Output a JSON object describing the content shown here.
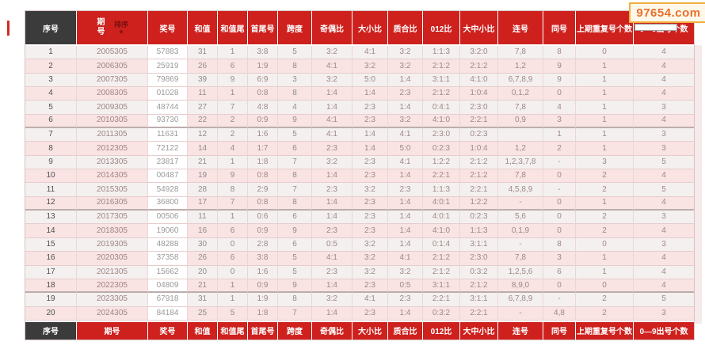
{
  "watermark": {
    "text": "97654.com"
  },
  "table": {
    "sort_label": "排序",
    "columns": [
      {
        "key": "serial",
        "label": "序号"
      },
      {
        "key": "period",
        "label": "期号"
      },
      {
        "key": "prize-number",
        "label": "奖号"
      },
      {
        "key": "sum",
        "label": "和值"
      },
      {
        "key": "sum-tail",
        "label": "和值尾"
      },
      {
        "key": "first-last",
        "label": "首尾号"
      },
      {
        "key": "span",
        "label": "跨度"
      },
      {
        "key": "odd-even-ratio",
        "label": "奇偶比"
      },
      {
        "key": "big-small-ratio",
        "label": "大小比"
      },
      {
        "key": "prime-composite-ratio",
        "label": "质合比"
      },
      {
        "key": "zero-one-two-ratio",
        "label": "012比"
      },
      {
        "key": "big-mid-small-ratio",
        "label": "大中小比"
      },
      {
        "key": "consecutive-numbers",
        "label": "连号"
      },
      {
        "key": "same-number",
        "label": "同号"
      },
      {
        "key": "prev-repeat-count",
        "label": "上期重复号个数"
      },
      {
        "key": "digit-count",
        "label": "0—9出号个数"
      }
    ],
    "rows": [
      [
        "1",
        "2005305",
        "57883",
        "31",
        "1",
        "3:8",
        "5",
        "3:2",
        "4:1",
        "3:2",
        "1:1:3",
        "3:2:0",
        "7,8",
        "8",
        "0",
        "4"
      ],
      [
        "2",
        "2006305",
        "25919",
        "26",
        "6",
        "1:9",
        "8",
        "4:1",
        "3:2",
        "3:2",
        "2:1:2",
        "2:1:2",
        "1,2",
        "9",
        "1",
        "4"
      ],
      [
        "3",
        "2007305",
        "79869",
        "39",
        "9",
        "6:9",
        "3",
        "3:2",
        "5:0",
        "1:4",
        "3:1:1",
        "4:1:0",
        "6,7,8,9",
        "9",
        "1",
        "4"
      ],
      [
        "4",
        "2008305",
        "01028",
        "11",
        "1",
        "0:8",
        "8",
        "1:4",
        "1:4",
        "2:3",
        "2:1:2",
        "1:0:4",
        "0,1,2",
        "0",
        "1",
        "4"
      ],
      [
        "5",
        "2009305",
        "48744",
        "27",
        "7",
        "4:8",
        "4",
        "1:4",
        "2:3",
        "1:4",
        "0:4:1",
        "2:3:0",
        "7,8",
        "4",
        "1",
        "3"
      ],
      [
        "6",
        "2010305",
        "93730",
        "22",
        "2",
        "0:9",
        "9",
        "4:1",
        "2:3",
        "3:2",
        "4:1:0",
        "2:2:1",
        "0,9",
        "3",
        "1",
        "4"
      ],
      [
        "7",
        "2011305",
        "11631",
        "12",
        "2",
        "1:6",
        "5",
        "4:1",
        "1:4",
        "4:1",
        "2:3:0",
        "0:2:3",
        "",
        "1",
        "1",
        "3"
      ],
      [
        "8",
        "2012305",
        "72122",
        "14",
        "4",
        "1:7",
        "6",
        "2:3",
        "1:4",
        "5:0",
        "0:2:3",
        "1:0:4",
        "1,2",
        "2",
        "1",
        "3"
      ],
      [
        "9",
        "2013305",
        "23817",
        "21",
        "1",
        "1:8",
        "7",
        "3:2",
        "2:3",
        "4:1",
        "1:2:2",
        "2:1:2",
        "1,2,3,7,8",
        "-",
        "3",
        "5"
      ],
      [
        "10",
        "2014305",
        "00487",
        "19",
        "9",
        "0:8",
        "8",
        "1:4",
        "2:3",
        "1:4",
        "2:2:1",
        "2:1:2",
        "7,8",
        "0",
        "2",
        "4"
      ],
      [
        "11",
        "2015305",
        "54928",
        "28",
        "8",
        "2:9",
        "7",
        "2:3",
        "3:2",
        "2:3",
        "1:1:3",
        "2:2:1",
        "4,5,8,9",
        "-",
        "2",
        "5"
      ],
      [
        "12",
        "2016305",
        "36800",
        "17",
        "7",
        "0:8",
        "8",
        "1:4",
        "2:3",
        "1:4",
        "4:0:1",
        "1:2:2",
        "-",
        "0",
        "1",
        "4"
      ],
      [
        "13",
        "2017305",
        "00506",
        "11",
        "1",
        "0:6",
        "6",
        "1:4",
        "2:3",
        "1:4",
        "4:0:1",
        "0:2:3",
        "5,6",
        "0",
        "2",
        "3"
      ],
      [
        "14",
        "2018305",
        "19060",
        "16",
        "6",
        "0:9",
        "9",
        "2:3",
        "2:3",
        "1:4",
        "4:1:0",
        "1:1:3",
        "0,1,9",
        "0",
        "2",
        "4"
      ],
      [
        "15",
        "2019305",
        "48288",
        "30",
        "0",
        "2:8",
        "6",
        "0:5",
        "3:2",
        "1:4",
        "0:1:4",
        "3:1:1",
        "-",
        "8",
        "0",
        "3"
      ],
      [
        "16",
        "2020305",
        "37358",
        "26",
        "6",
        "3:8",
        "5",
        "4:1",
        "3:2",
        "4:1",
        "2:1:2",
        "2:3:0",
        "7,8",
        "3",
        "1",
        "4"
      ],
      [
        "17",
        "2021305",
        "15662",
        "20",
        "0",
        "1:6",
        "5",
        "2:3",
        "3:2",
        "3:2",
        "2:1:2",
        "0:3:2",
        "1,2,5,6",
        "6",
        "1",
        "4"
      ],
      [
        "18",
        "2022305",
        "04809",
        "21",
        "1",
        "0:9",
        "9",
        "1:4",
        "2:3",
        "0:5",
        "3:1:1",
        "2:1:2",
        "8,9,0",
        "0",
        "0",
        "4"
      ],
      [
        "19",
        "2023305",
        "67918",
        "31",
        "1",
        "1:9",
        "8",
        "3:2",
        "4:1",
        "2:3",
        "2:2:1",
        "3:1:1",
        "6,7,8,9",
        "-",
        "2",
        "5"
      ],
      [
        "20",
        "2024305",
        "84184",
        "25",
        "5",
        "1:8",
        "7",
        "1:4",
        "2:3",
        "1:4",
        "0:3:2",
        "2:2:1",
        "-",
        "4,8",
        "2",
        "3"
      ]
    ]
  }
}
